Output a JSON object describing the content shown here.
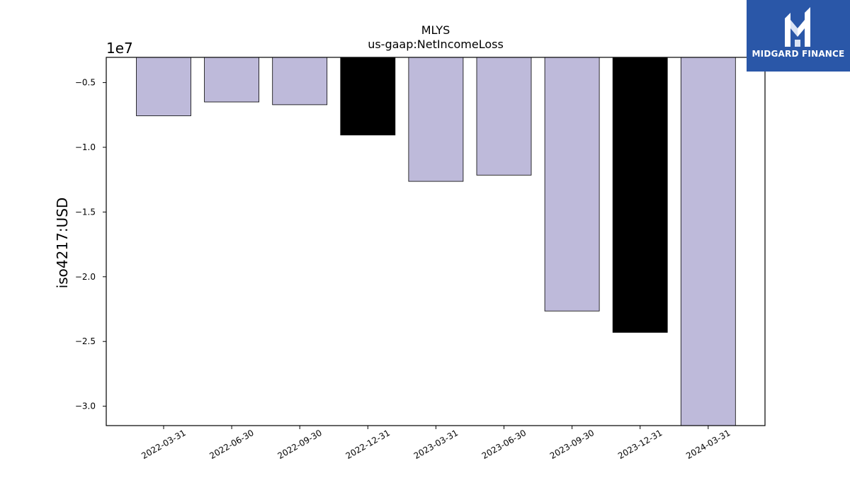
{
  "brand": {
    "name": "MIDGARD FINANCE",
    "background": "#2a57a8",
    "icon": "midgard-logo-icon"
  },
  "chart_data": {
    "type": "bar",
    "title": "MLYS",
    "subtitle": "us-gaap:NetIncomeLoss",
    "ylabel": "iso4217:USD",
    "xlabel": "",
    "offset_label": "1e7",
    "categories": [
      "2022-03-31",
      "2022-06-30",
      "2022-09-30",
      "2022-12-31",
      "2023-03-31",
      "2023-06-30",
      "2023-09-30",
      "2023-12-31",
      "2024-03-31"
    ],
    "values": [
      -7561000,
      -6495000,
      -6710000,
      -9050000,
      -12630000,
      -12150000,
      -22650000,
      -24300000,
      -31500000
    ],
    "bar_colors": [
      "#bebada",
      "#bebada",
      "#bebada",
      "#000000",
      "#bebada",
      "#bebada",
      "#bebada",
      "#000000",
      "#bebada"
    ],
    "bar_edge_color": "#000000",
    "yticks": [
      -3.0,
      -2.5,
      -2.0,
      -1.5,
      -1.0,
      -0.5
    ],
    "ytick_labels": [
      "−3.0",
      "−2.5",
      "−2.0",
      "−1.5",
      "−1.0",
      "−0.5"
    ],
    "ylim": [
      -31500000,
      -3050000
    ],
    "grid": false,
    "legend": "none"
  }
}
